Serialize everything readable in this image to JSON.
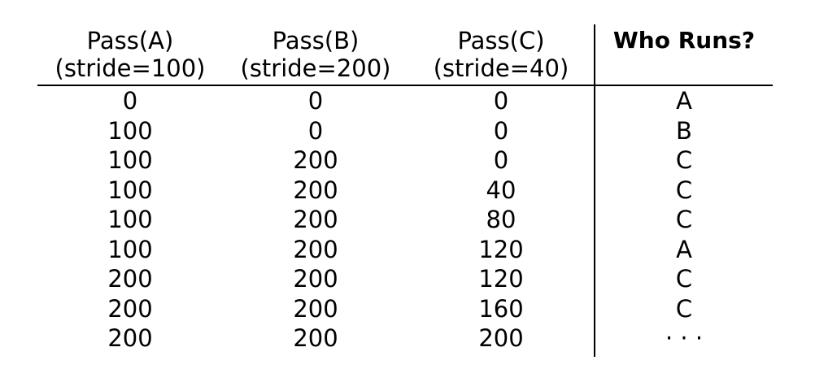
{
  "table": {
    "columns": [
      {
        "line1": "Pass(A)",
        "line2": "(stride=100)"
      },
      {
        "line1": "Pass(B)",
        "line2": "(stride=200)"
      },
      {
        "line1": "Pass(C)",
        "line2": "(stride=40)"
      },
      {
        "line1": "Who Runs?"
      }
    ],
    "rows": [
      [
        "0",
        "0",
        "0",
        "A"
      ],
      [
        "100",
        "0",
        "0",
        "B"
      ],
      [
        "100",
        "200",
        "0",
        "C"
      ],
      [
        "100",
        "200",
        "40",
        "C"
      ],
      [
        "100",
        "200",
        "80",
        "C"
      ],
      [
        "100",
        "200",
        "120",
        "A"
      ],
      [
        "200",
        "200",
        "120",
        "C"
      ],
      [
        "200",
        "200",
        "160",
        "C"
      ],
      [
        "200",
        "200",
        "200",
        "· · ·"
      ]
    ]
  }
}
